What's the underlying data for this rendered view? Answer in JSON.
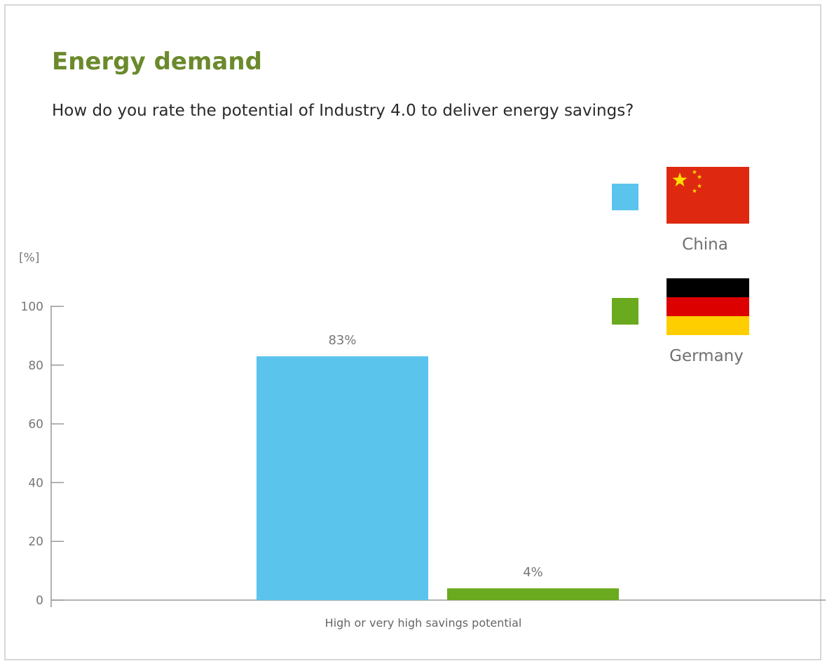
{
  "title": "Energy demand",
  "subtitle": "How do you rate the potential of Industry 4.0 to deliver energy savings?",
  "colors": {
    "title": "#6b8a2c",
    "china": "#5bc4ec",
    "germany": "#6aaa1e"
  },
  "legend": [
    {
      "name": "China",
      "color": "#5bc4ec",
      "flag": "china-flag"
    },
    {
      "name": "Germany",
      "color": "#6aaa1e",
      "flag": "germany-flag"
    }
  ],
  "chart_data": {
    "type": "bar",
    "title": "Energy demand",
    "subtitle": "How do you rate the potential of Industry 4.0 to deliver energy savings?",
    "categories": [
      "High or very high savings potential"
    ],
    "series": [
      {
        "name": "China",
        "values": [
          83
        ],
        "labels": [
          "83%"
        ],
        "color": "#5bc4ec"
      },
      {
        "name": "Germany",
        "values": [
          4
        ],
        "labels": [
          "4%"
        ],
        "color": "#6aaa1e"
      }
    ],
    "ylabel": "[%]",
    "xlabel": "",
    "ylim": [
      0,
      100
    ],
    "yticks": [
      0,
      20,
      40,
      60,
      80,
      100
    ],
    "grid": false,
    "legend_position": "top-right"
  }
}
